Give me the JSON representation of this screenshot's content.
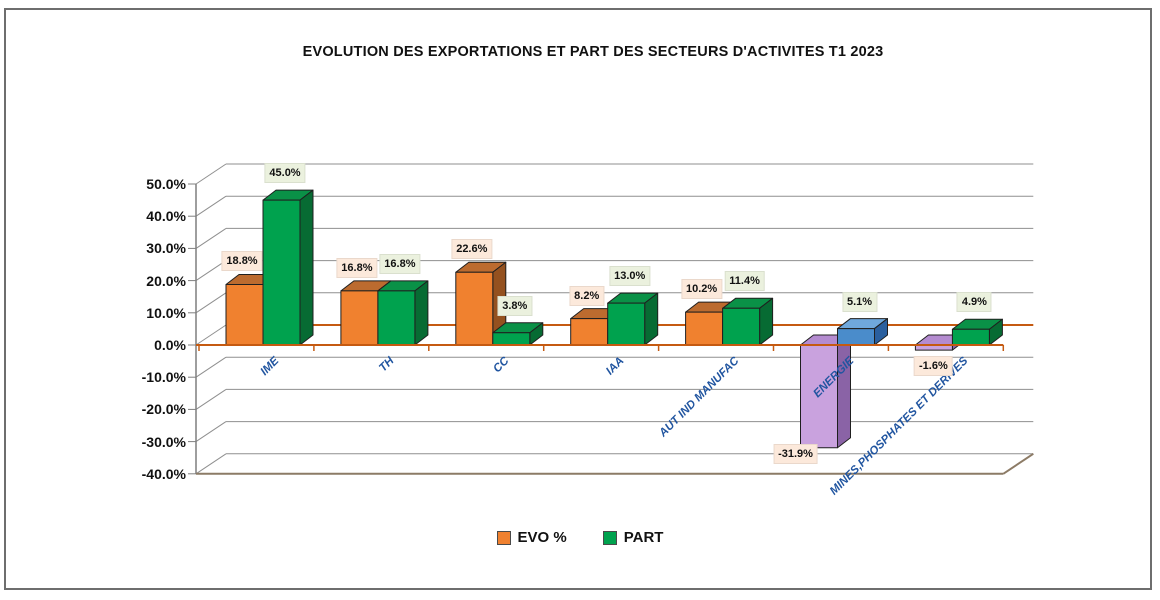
{
  "title": "EVOLUTION DES EXPORTATIONS ET PART DES SECTEURS D'ACTIVITES T1 2023",
  "legend": {
    "items": [
      {
        "label": "EVO %",
        "swatch": "orange"
      },
      {
        "label": "PART",
        "swatch": "green"
      }
    ]
  },
  "y_axis": {
    "tick_labels": [
      "50.0%",
      "40.0%",
      "30.0%",
      "20.0%",
      "10.0%",
      "0.0%",
      "-10.0%",
      "-20.0%",
      "-30.0%",
      "-40.0%"
    ]
  },
  "chart_data": {
    "type": "bar",
    "projection": "3d",
    "title": "EVOLUTION DES EXPORTATIONS ET PART DES SECTEURS D'ACTIVITES T1 2023",
    "categories": [
      "IME",
      "TH",
      "CC",
      "IAA",
      "AUT IND MANUFAC",
      "ENERGIE",
      "MINES,PHOSPHATES ET DERIVES"
    ],
    "series": [
      {
        "name": "EVO %",
        "values": [
          18.8,
          16.8,
          22.6,
          8.2,
          10.2,
          -31.9,
          -1.6
        ]
      },
      {
        "name": "PART",
        "values": [
          45.0,
          16.8,
          3.8,
          13.0,
          11.4,
          5.1,
          4.9
        ]
      }
    ],
    "data_labels": {
      "evo": [
        "18.8%",
        "16.8%",
        "22.6%",
        "8.2%",
        "10.2%",
        "-31.9%",
        "-1.6%"
      ],
      "part": [
        "45.0%",
        "16.8%",
        "3.8%",
        "13.0%",
        "11.4%",
        "5.1%",
        "4.9%"
      ]
    },
    "ylim": [
      -40,
      50
    ],
    "y_step": 10,
    "grid": true,
    "legend_position": "bottom"
  },
  "colors": {
    "palette": {
      "orange": {
        "front": "#F0812F",
        "top": "#BC6B2F",
        "side": "#94511F"
      },
      "green": {
        "front": "#00A24E",
        "top": "#0A9147",
        "side": "#076B33"
      },
      "purple": {
        "front": "#C9A2DE",
        "top": "#B48BD0",
        "side": "#8A63A6"
      },
      "blue": {
        "front": "#4A8CCB",
        "top": "#6FA8DC",
        "side": "#2A5F9E"
      }
    },
    "series_colors": {
      "evo": [
        "orange",
        "orange",
        "orange",
        "orange",
        "orange",
        "purple",
        "purple"
      ],
      "part": [
        "green",
        "green",
        "green",
        "green",
        "green",
        "blue",
        "green"
      ]
    },
    "label_fills": {
      "evo": "#FCE9DB",
      "part": "#EBF1DE"
    },
    "lines": {
      "grid": "#8F8F8F",
      "zero": "#C55A11",
      "axis": "#7F7F7F",
      "floor": "#8C7B66",
      "border": "#6E6E6E"
    }
  }
}
